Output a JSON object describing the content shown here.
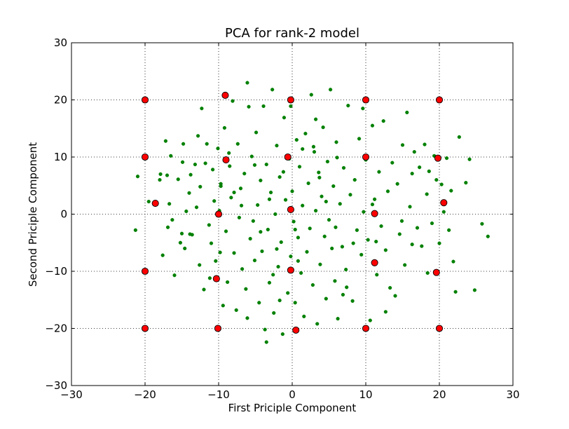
{
  "chart_data": {
    "type": "scatter",
    "title": "PCA for rank-2 model",
    "xlabel": "First Priciple Component",
    "ylabel": "Second Priciple Component",
    "xlim": [
      -30,
      30
    ],
    "ylim": [
      -30,
      30
    ],
    "xticks": [
      -30,
      -20,
      -10,
      0,
      10,
      20,
      30
    ],
    "yticks": [
      -30,
      -20,
      -10,
      0,
      10,
      20,
      30
    ],
    "xtick_labels": [
      "−30",
      "−20",
      "−10",
      "0",
      "10",
      "20",
      "30"
    ],
    "ytick_labels": [
      "−30",
      "−20",
      "−10",
      "0",
      "10",
      "20",
      "30"
    ],
    "grid": true,
    "series": [
      {
        "marker": "small-dot",
        "color": "#008000",
        "points": [
          [
            -21.0,
            6.6
          ],
          [
            -21.3,
            -2.8
          ],
          [
            -19.5,
            2.2
          ],
          [
            -18.0,
            6.0
          ],
          [
            -17.9,
            7.0
          ],
          [
            -17.6,
            -7.2
          ],
          [
            -17.2,
            12.8
          ],
          [
            -17.0,
            6.8
          ],
          [
            -16.9,
            -2.3
          ],
          [
            -16.7,
            1.8
          ],
          [
            -16.5,
            10.2
          ],
          [
            -16.3,
            -1.0
          ],
          [
            -16.0,
            -10.7
          ],
          [
            -15.5,
            6.1
          ],
          [
            -15.2,
            -5.0
          ],
          [
            -15.0,
            -3.4
          ],
          [
            -14.8,
            12.3
          ],
          [
            -14.6,
            -6.0
          ],
          [
            -14.4,
            0.5
          ],
          [
            -14.0,
            3.7
          ],
          [
            -13.8,
            6.9
          ],
          [
            -13.6,
            -3.6
          ],
          [
            -13.2,
            8.7
          ],
          [
            -13.0,
            1.2
          ],
          [
            -12.8,
            13.7
          ],
          [
            -12.5,
            4.8
          ],
          [
            -12.3,
            18.5
          ],
          [
            -12.0,
            -13.2
          ],
          [
            -11.8,
            8.9
          ],
          [
            -11.6,
            12.3
          ],
          [
            -11.3,
            -1.9
          ],
          [
            -11.0,
            -5.1
          ],
          [
            -10.8,
            7.8
          ],
          [
            -10.6,
            2.3
          ],
          [
            -10.4,
            -8.2
          ],
          [
            -10.1,
            11.5
          ],
          [
            -9.9,
            0.6
          ],
          [
            -9.7,
            5.3
          ],
          [
            -9.4,
            -16.0
          ],
          [
            -9.2,
            15.1
          ],
          [
            -9.0,
            -3.0
          ],
          [
            -8.8,
            -11.9
          ],
          [
            -8.5,
            8.4
          ],
          [
            -8.3,
            2.9
          ],
          [
            -8.1,
            19.8
          ],
          [
            -7.9,
            -6.8
          ],
          [
            -7.6,
            -16.8
          ],
          [
            -7.4,
            12.3
          ],
          [
            -7.2,
            -0.6
          ],
          [
            -7.0,
            4.5
          ],
          [
            -6.8,
            -9.6
          ],
          [
            -6.5,
            7.1
          ],
          [
            -6.3,
            -13.1
          ],
          [
            -6.1,
            23.0
          ],
          [
            -5.9,
            18.8
          ],
          [
            -5.7,
            -4.3
          ],
          [
            -5.5,
            10.1
          ],
          [
            -5.3,
            -1.2
          ],
          [
            -5.1,
            -8.1
          ],
          [
            -4.9,
            14.3
          ],
          [
            -4.7,
            1.6
          ],
          [
            -4.5,
            -15.5
          ],
          [
            -4.3,
            5.9
          ],
          [
            -4.1,
            -6.5
          ],
          [
            -3.9,
            18.9
          ],
          [
            -3.7,
            -20.2
          ],
          [
            -3.5,
            8.7
          ],
          [
            -3.3,
            -2.7
          ],
          [
            -3.1,
            -12.0
          ],
          [
            -2.9,
            3.8
          ],
          [
            -2.7,
            21.8
          ],
          [
            -2.5,
            -17.3
          ],
          [
            -2.3,
            0.0
          ],
          [
            -2.1,
            12.0
          ],
          [
            -1.9,
            -9.2
          ],
          [
            -1.7,
            6.5
          ],
          [
            -1.5,
            -4.9
          ],
          [
            -1.3,
            -21.0
          ],
          [
            -1.1,
            16.9
          ],
          [
            -0.9,
            2.5
          ],
          [
            -0.6,
            -13.8
          ],
          [
            -0.4,
            9.7
          ],
          [
            -0.2,
            -7.4
          ],
          [
            0.0,
            4.0
          ],
          [
            0.2,
            -1.3
          ],
          [
            0.4,
            -15.5
          ],
          [
            0.6,
            13.0
          ],
          [
            0.8,
            -4.1
          ],
          [
            1.0,
            8.3
          ],
          [
            1.2,
            -10.3
          ],
          [
            1.4,
            1.5
          ],
          [
            1.6,
            -17.9
          ],
          [
            1.8,
            14.1
          ],
          [
            2.0,
            -6.6
          ],
          [
            2.2,
            5.4
          ],
          [
            2.4,
            -2.5
          ],
          [
            2.6,
            20.9
          ],
          [
            2.8,
            -12.4
          ],
          [
            3.0,
            10.9
          ],
          [
            3.2,
            0.6
          ],
          [
            3.4,
            -19.2
          ],
          [
            3.6,
            7.3
          ],
          [
            3.8,
            -8.8
          ],
          [
            4.0,
            3.1
          ],
          [
            4.2,
            15.2
          ],
          [
            4.4,
            -3.9
          ],
          [
            4.6,
            -14.8
          ],
          [
            4.8,
            9.2
          ],
          [
            5.0,
            -1.0
          ],
          [
            5.2,
            21.8
          ],
          [
            5.4,
            -6.0
          ],
          [
            5.6,
            4.9
          ],
          [
            5.8,
            -11.7
          ],
          [
            6.0,
            12.6
          ],
          [
            6.2,
            -18.3
          ],
          [
            6.5,
            1.8
          ],
          [
            6.8,
            -5.7
          ],
          [
            7.0,
            8.1
          ],
          [
            7.3,
            -9.7
          ],
          [
            7.6,
            19.0
          ],
          [
            7.9,
            3.4
          ],
          [
            8.2,
            -15.2
          ],
          [
            8.5,
            6.0
          ],
          [
            8.8,
            -2.8
          ],
          [
            9.1,
            13.2
          ],
          [
            9.4,
            -7.1
          ],
          [
            9.7,
            0.4
          ],
          [
            10.0,
            9.5
          ],
          [
            10.3,
            -4.5
          ],
          [
            10.6,
            -18.6
          ],
          [
            10.9,
            15.5
          ],
          [
            11.2,
            2.6
          ],
          [
            11.5,
            -10.6
          ],
          [
            11.8,
            7.4
          ],
          [
            12.1,
            -2.1
          ],
          [
            12.4,
            16.3
          ],
          [
            12.7,
            -6.3
          ],
          [
            13.0,
            4.0
          ],
          [
            13.3,
            -12.9
          ],
          [
            13.6,
            9.0
          ],
          [
            14.0,
            -14.3
          ],
          [
            14.3,
            5.3
          ],
          [
            14.6,
            -3.5
          ],
          [
            15.0,
            12.1
          ],
          [
            15.3,
            -8.9
          ],
          [
            15.6,
            17.8
          ],
          [
            16.0,
            1.3
          ],
          [
            16.3,
            -5.3
          ],
          [
            16.6,
            10.9
          ],
          [
            17.0,
            -2.4
          ],
          [
            17.3,
            8.2
          ],
          [
            17.6,
            -5.6
          ],
          [
            18.0,
            12.2
          ],
          [
            18.3,
            3.5
          ],
          [
            18.6,
            7.5
          ],
          [
            19.0,
            -1.6
          ],
          [
            19.3,
            10.2
          ],
          [
            19.6,
            6.0
          ],
          [
            20.0,
            -5.1
          ],
          [
            20.3,
            5.2
          ],
          [
            20.6,
            0.4
          ],
          [
            21.0,
            9.8
          ],
          [
            21.3,
            -2.8
          ],
          [
            21.6,
            4.1
          ],
          [
            21.9,
            -8.3
          ],
          [
            22.2,
            -13.6
          ],
          [
            22.7,
            13.5
          ],
          [
            23.6,
            5.5
          ],
          [
            24.1,
            9.6
          ],
          [
            24.8,
            -13.3
          ],
          [
            25.8,
            -1.7
          ],
          [
            26.6,
            -3.9
          ],
          [
            -3.5,
            -22.4
          ],
          [
            3.2,
            16.6
          ],
          [
            -8.6,
            10.7
          ],
          [
            -12.6,
            -8.9
          ],
          [
            6.9,
            -14.1
          ],
          [
            -1.2,
            7.4
          ],
          [
            0.8,
            -8.2
          ],
          [
            9.6,
            18.5
          ],
          [
            -6.9,
            1.5
          ],
          [
            4.6,
            2.2
          ],
          [
            -9.8,
            -6.7
          ],
          [
            2.9,
            11.8
          ],
          [
            -2.6,
            -10.6
          ],
          [
            11.4,
            -4.8
          ],
          [
            -5.1,
            8.6
          ],
          [
            7.4,
            -12.8
          ],
          [
            -14.9,
            9.1
          ],
          [
            14.9,
            -1.2
          ],
          [
            -0.2,
            18.9
          ],
          [
            -11.2,
            -11.2
          ],
          [
            10.9,
            1.7
          ],
          [
            -4.3,
            -3.1
          ],
          [
            5.9,
            -2.3
          ],
          [
            -7.9,
            3.8
          ],
          [
            3.7,
            6.4
          ],
          [
            -1.7,
            -15.1
          ],
          [
            12.7,
            -17.1
          ],
          [
            -9.7,
            4.9
          ],
          [
            1.4,
            11.4
          ],
          [
            -3.1,
            2.6
          ],
          [
            8.3,
            -5.1
          ],
          [
            -13.9,
            -3.5
          ],
          [
            16.3,
            7.1
          ],
          [
            -6.1,
            -18.2
          ],
          [
            0.4,
            -2.7
          ],
          [
            6.1,
            9.9
          ],
          [
            -2.1,
            -6.1
          ],
          [
            18.4,
            -10.3
          ]
        ]
      },
      {
        "marker": "large-circle",
        "color": "#ff0000",
        "edgecolor": "#000000",
        "points": [
          [
            -20.0,
            20.0
          ],
          [
            -9.1,
            20.8
          ],
          [
            -0.2,
            20.0
          ],
          [
            10.0,
            20.0
          ],
          [
            20.0,
            20.0
          ],
          [
            -20.0,
            10.0
          ],
          [
            -9.0,
            9.5
          ],
          [
            -0.6,
            10.0
          ],
          [
            10.0,
            10.0
          ],
          [
            19.8,
            9.8
          ],
          [
            -18.6,
            1.9
          ],
          [
            -10.0,
            0.0
          ],
          [
            -0.2,
            0.8
          ],
          [
            11.2,
            0.1
          ],
          [
            20.6,
            2.0
          ],
          [
            -20.0,
            -10.0
          ],
          [
            -10.3,
            -11.3
          ],
          [
            -0.2,
            -9.8
          ],
          [
            11.2,
            -8.5
          ],
          [
            19.6,
            -10.2
          ],
          [
            -20.0,
            -20.0
          ],
          [
            -10.1,
            -20.0
          ],
          [
            0.5,
            -20.3
          ],
          [
            10.0,
            -20.0
          ],
          [
            20.0,
            -20.0
          ]
        ]
      }
    ]
  }
}
